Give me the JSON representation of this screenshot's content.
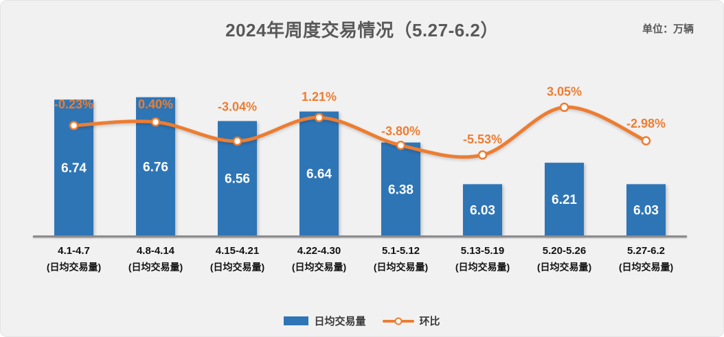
{
  "header": {
    "title": "2024年周度交易情况（5.27-6.2）",
    "unit": "单位：万辆"
  },
  "colors": {
    "background": "#F1F1F2",
    "bar": "#2E75B6",
    "line": "#ED7D31",
    "bar_value_label": "#FFFFFF",
    "pct_label": "#ED7D31",
    "axis_line": "#8C8C8C",
    "title_text": "#595959",
    "tick_text": "#111111"
  },
  "chart_data": {
    "type": "bar",
    "subtype": "bar+line combo, smoothed line on secondary axis",
    "title": "2024年周度交易情况（5.27-6.2）",
    "unit": "单位：万辆",
    "categories": [
      "4.1-4.7",
      "4.8-4.14",
      "4.15-4.21",
      "4.22-4.30",
      "5.1-5.12",
      "5.13-5.19",
      "5.20-5.26",
      "5.27-6.2"
    ],
    "category_sublabel": "(日均交易量)",
    "series": [
      {
        "name": "日均交易量",
        "type": "bar",
        "axis": "left",
        "values": [
          6.74,
          6.76,
          6.56,
          6.64,
          6.38,
          6.03,
          6.21,
          6.03
        ],
        "value_labels": [
          "6.74",
          "6.76",
          "6.56",
          "6.64",
          "6.38",
          "6.03",
          "6.21",
          "6.03"
        ]
      },
      {
        "name": "环比",
        "type": "line",
        "axis": "right",
        "values_pct": [
          -0.23,
          0.4,
          -3.04,
          1.21,
          -3.8,
          -5.53,
          3.05,
          -2.98
        ],
        "point_labels": [
          "-0.23%",
          "0.40%",
          "-3.04%",
          "1.21%",
          "-3.80%",
          "-5.53%",
          "3.05%",
          "-2.98%"
        ]
      }
    ],
    "ylabel": "",
    "xlabel": "",
    "ylim_left": [
      5.6,
      7.0
    ],
    "ylim_right": [
      -20,
      10
    ],
    "grid": false,
    "axes_ticks_visible": false,
    "legend_position": "bottom",
    "pct_label_dy": [
      -25,
      -20,
      -44,
      -24,
      -15,
      -17,
      -17,
      -19
    ]
  },
  "legend": {
    "items": [
      {
        "label": "日均交易量",
        "marker": "bar-swatch"
      },
      {
        "label": "环比",
        "marker": "line-swatch"
      }
    ]
  }
}
